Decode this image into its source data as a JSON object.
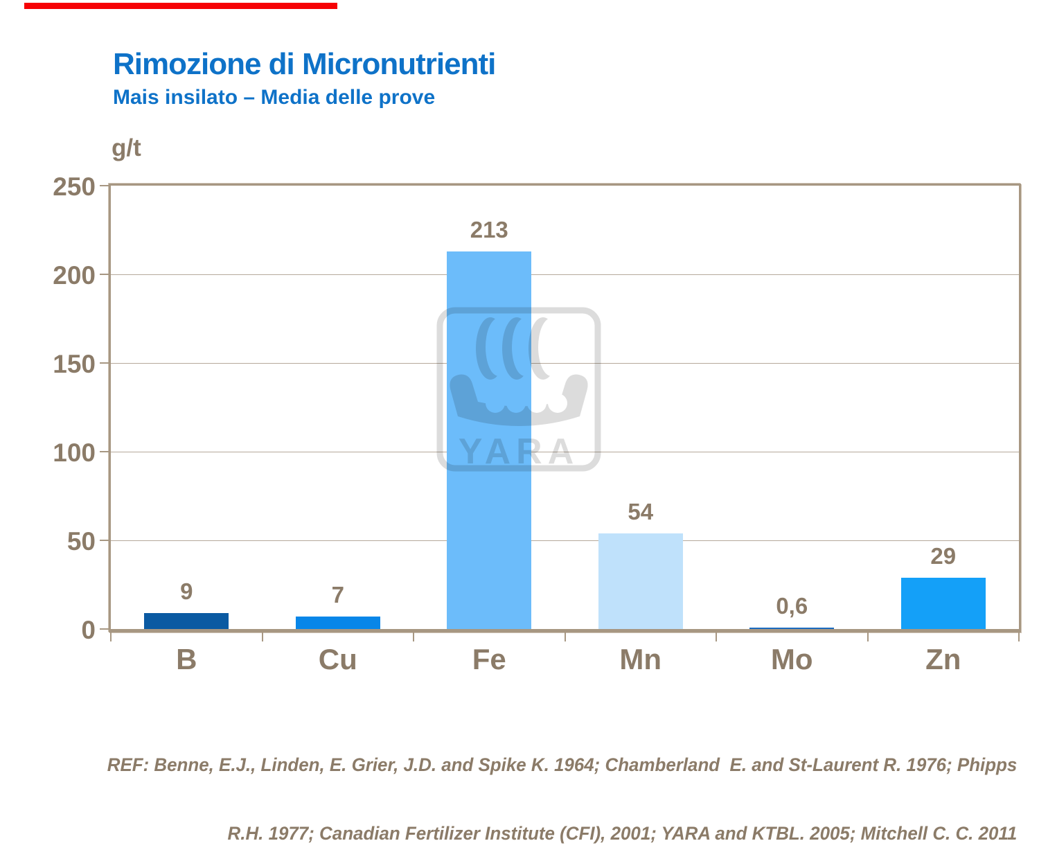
{
  "player": {
    "progress_color": "#f60205"
  },
  "header": {
    "title": "Rimozione di Micronutrienti",
    "subtitle": "Mais insilato – Media delle prove",
    "title_color": "#0e72c8"
  },
  "footer": {
    "ref_line1": "REF: Benne, E.J., Linden, E. Grier, J.D. and Spike K. 1964; Chamberland  E. and St-Laurent R. 1976; Phipps",
    "ref_line2": "R.H. 1977; Canadian Fertilizer Institute (CFI), 2001; YARA and KTBL. 2005; Mitchell C. C. 2011"
  },
  "watermark": {
    "brand": "YARA",
    "icon": "yara-viking-ship-logo",
    "color": "#dcdcdc"
  },
  "chart_data": {
    "type": "bar",
    "title": "Rimozione di Micronutrienti",
    "subtitle": "Mais insilato – Media delle prove",
    "ylabel": "g/t",
    "xlabel": "",
    "categories": [
      "B",
      "Cu",
      "Fe",
      "Mn",
      "Mo",
      "Zn"
    ],
    "values": [
      9,
      7,
      213,
      54,
      0.6,
      29
    ],
    "value_labels": [
      "9",
      "7",
      "213",
      "54",
      "0,6",
      "29"
    ],
    "bar_colors": [
      "#0b5aa2",
      "#0886e8",
      "#6cbcfa",
      "#bfe1fb",
      "#1a6abf",
      "#14a0f8"
    ],
    "ylim": [
      0,
      250
    ],
    "yticks": [
      0,
      50,
      100,
      150,
      200,
      250
    ],
    "grid": true,
    "legend": false,
    "axis_color": "#a79782",
    "text_color": "#8b7b68"
  }
}
